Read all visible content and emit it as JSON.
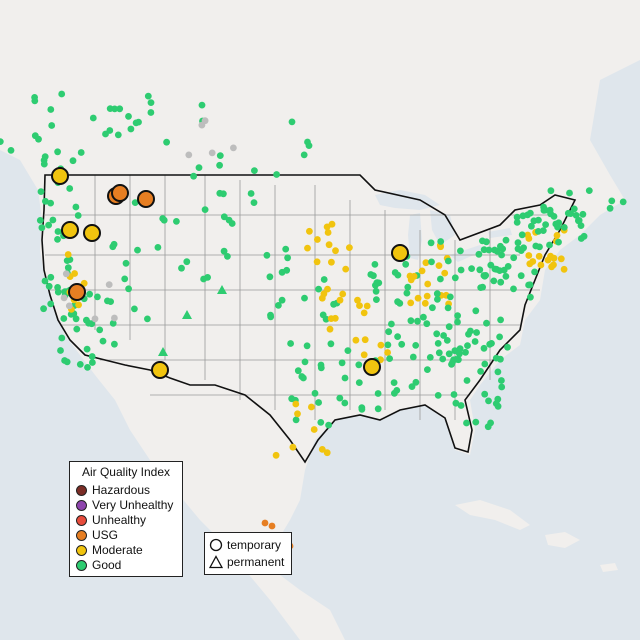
{
  "legend_aqi": {
    "title": "Air Quality Index",
    "items": [
      {
        "label": "Hazardous",
        "color": "#7b2d26"
      },
      {
        "label": "Very Unhealthy",
        "color": "#8e44ad"
      },
      {
        "label": "Unhealthy",
        "color": "#e74c3c"
      },
      {
        "label": "USG",
        "color": "#e67e22"
      },
      {
        "label": "Moderate",
        "color": "#f1c40f"
      },
      {
        "label": "Good",
        "color": "#2ecc71"
      }
    ]
  },
  "legend_type": {
    "items": [
      {
        "label": "temporary",
        "shape": "circle"
      },
      {
        "label": "permanent",
        "shape": "triangle"
      }
    ]
  },
  "colors": {
    "water": "#dfe6ec",
    "land": "#f1efed",
    "border": "#111111",
    "state_line": "#9a9a9a",
    "no_data": "#bdbdbd"
  }
}
